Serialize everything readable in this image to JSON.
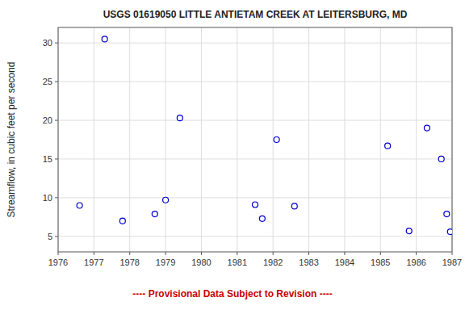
{
  "chart_data": {
    "type": "scatter",
    "title": "USGS 01619050 LITTLE ANTIETAM CREEK AT LEITERSBURG, MD",
    "ylabel": "Streamflow, in cubic feet per second",
    "annotations": [
      {
        "text": "---- Provisional Data Subject to Revision ----",
        "color": "#cc0000"
      }
    ],
    "x": [
      1976.6,
      1977.3,
      1977.8,
      1978.7,
      1979.0,
      1979.4,
      1981.5,
      1981.7,
      1982.1,
      1982.6,
      1985.2,
      1985.8,
      1986.3,
      1986.7,
      1986.85,
      1986.95
    ],
    "values": [
      9.0,
      30.5,
      7.0,
      7.9,
      9.7,
      20.3,
      9.1,
      7.3,
      17.5,
      8.9,
      16.7,
      5.7,
      19.0,
      15.0,
      7.9,
      5.6
    ],
    "color": "#0000cc",
    "marker": "open-circle",
    "xlim": [
      1976,
      1987
    ],
    "ylim": [
      3,
      32
    ],
    "xticks": [
      1976,
      1977,
      1978,
      1979,
      1980,
      1981,
      1982,
      1983,
      1984,
      1985,
      1986,
      1987
    ],
    "yticks": [
      5,
      10,
      15,
      20,
      25,
      30
    ],
    "grid": true
  }
}
